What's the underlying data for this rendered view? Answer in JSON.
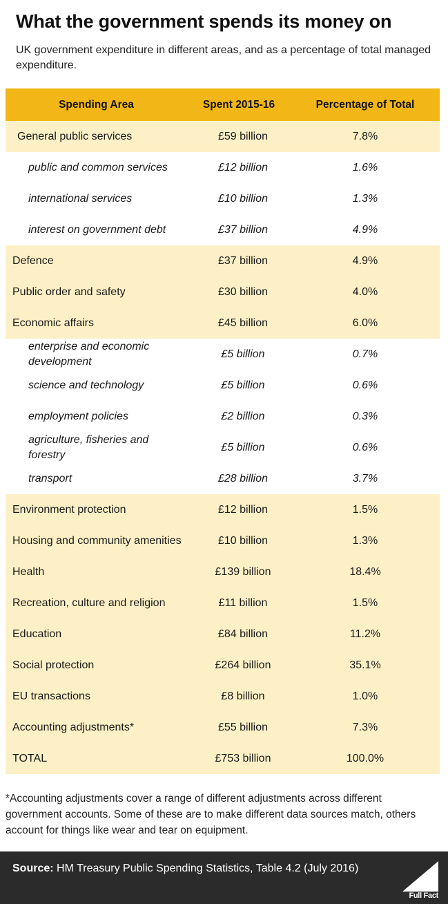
{
  "title": "What the government spends its money on",
  "subtitle": "UK government expenditure in different areas, and as a percentage of total managed expenditure.",
  "headers": {
    "area": "Spending Area",
    "spent": "Spent 2015-16",
    "pct": "Percentage of Total"
  },
  "rows": [
    {
      "area": "General public services",
      "spent": "£59 billion",
      "pct": "7.8%"
    },
    {
      "area": "public and common services",
      "spent": "£12 billion",
      "pct": "1.6%"
    },
    {
      "area": "international services",
      "spent": "£10 billion",
      "pct": "1.3%"
    },
    {
      "area": "interest on government debt",
      "spent": "£37 billion",
      "pct": "4.9%"
    },
    {
      "area": "Defence",
      "spent": "£37 billion",
      "pct": "4.9%"
    },
    {
      "area": "Public order and safety",
      "spent": "£30 billion",
      "pct": "4.0%"
    },
    {
      "area": "Economic affairs",
      "spent": "£45 billion",
      "pct": "6.0%"
    },
    {
      "area": "enterprise and economic development",
      "spent": "£5 billion",
      "pct": "0.7%"
    },
    {
      "area": "science and technology",
      "spent": "£5 billion",
      "pct": "0.6%"
    },
    {
      "area": "employment policies",
      "spent": "£2 billion",
      "pct": "0.3%"
    },
    {
      "area": "agriculture, fisheries and forestry",
      "spent": "£5 billion",
      "pct": "0.6%"
    },
    {
      "area": "transport",
      "spent": "£28 billion",
      "pct": "3.7%"
    },
    {
      "area": "Environment protection",
      "spent": "£12 billion",
      "pct": "1.5%"
    },
    {
      "area": "Housing and community amenities",
      "spent": "£10 billion",
      "pct": "1.3%"
    },
    {
      "area": "Health",
      "spent": "£139 billion",
      "pct": "18.4%"
    },
    {
      "area": "Recreation, culture and religion",
      "spent": "£11 billion",
      "pct": "1.5%"
    },
    {
      "area": "Education",
      "spent": "£84 billion",
      "pct": "11.2%"
    },
    {
      "area": "Social protection",
      "spent": "£264 billion",
      "pct": "35.1%"
    },
    {
      "area": "EU transactions",
      "spent": "£8 billion",
      "pct": "1.0%"
    },
    {
      "area": "Accounting adjustments*",
      "spent": "£55 billion",
      "pct": "7.3%"
    },
    {
      "area": "TOTAL",
      "spent": "£753 billion",
      "pct": "100.0%"
    }
  ],
  "footnote": "*Accounting adjustments cover a range of different adjustments across different government accounts. Some of these are to make different data sources match, others account for things like wear and tear on equipment.",
  "source": {
    "label": "Source:",
    "text": " HM Treasury Public Spending Statistics, Table 4.2 (July 2016)"
  },
  "logo_text": "Full Fact",
  "colors": {
    "header": "#f2b617",
    "shaded": "#fdf0c6",
    "source_bar": "#2b2b2b"
  }
}
